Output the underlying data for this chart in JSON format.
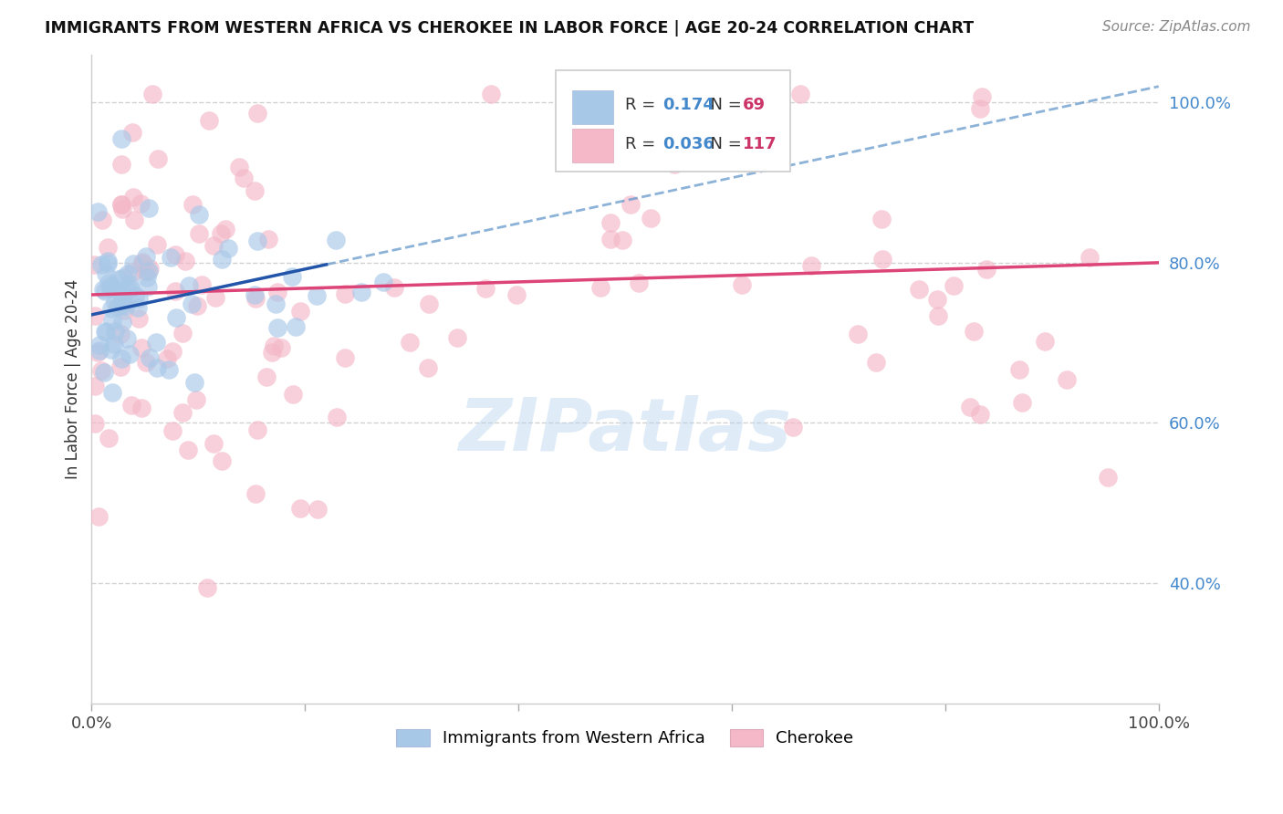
{
  "title": "IMMIGRANTS FROM WESTERN AFRICA VS CHEROKEE IN LABOR FORCE | AGE 20-24 CORRELATION CHART",
  "source": "Source: ZipAtlas.com",
  "ylabel": "In Labor Force | Age 20-24",
  "legend_r_blue": "0.174",
  "legend_n_blue": "69",
  "legend_r_pink": "0.036",
  "legend_n_pink": "117",
  "legend_label_blue": "Immigrants from Western Africa",
  "legend_label_pink": "Cherokee",
  "blue_color": "#a8c8e8",
  "pink_color": "#f4b8c8",
  "blue_face_color": "#a8c8e8",
  "pink_face_color": "#f4b8c8",
  "blue_line_color": "#2255aa",
  "pink_line_color": "#dd4477",
  "blue_dashed_color": "#6699cc",
  "xlim": [
    0.0,
    1.0
  ],
  "ylim": [
    0.25,
    1.06
  ],
  "right_ytick_vals": [
    0.4,
    0.6,
    0.8,
    1.0
  ],
  "right_yticklabels": [
    "40.0%",
    "60.0%",
    "80.0%",
    "100.0%"
  ],
  "blue_trend_x0": 0.0,
  "blue_trend_y0": 0.735,
  "blue_trend_x1": 1.0,
  "blue_trend_y1": 1.02,
  "pink_trend_x0": 0.0,
  "pink_trend_y0": 0.76,
  "pink_trend_x1": 1.0,
  "pink_trend_y1": 0.8,
  "watermark": "ZIPatlas",
  "background_color": "#ffffff",
  "grid_color": "#cccccc",
  "n_blue": 69,
  "n_pink": 117
}
